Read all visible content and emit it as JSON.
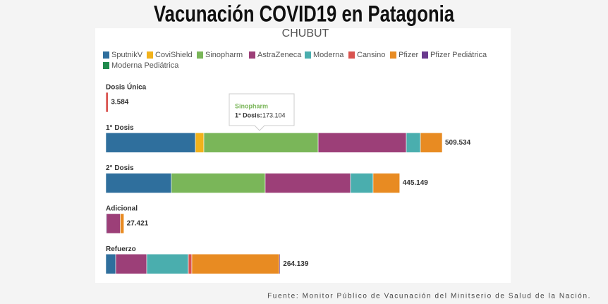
{
  "chart_data": {
    "type": "stacked-barh",
    "title": "Vacunación COVID19 en Patagonia",
    "subtitle": "CHUBUT",
    "source": "Fuente: Monitor Público de Vacunación del Minitserio de Salud de la Nación.",
    "categories": [
      "Dosis Única",
      "1° Dosis",
      "2° Dosis",
      "Adicional",
      "Refuerzo"
    ],
    "series": [
      {
        "name": "SputnikV",
        "color": "#2f6f9d",
        "values": [
          null,
          135700,
          99300,
          1000,
          15000
        ]
      },
      {
        "name": "CoviShield",
        "color": "#f2b21b",
        "values": [
          null,
          12800,
          null,
          null,
          null
        ]
      },
      {
        "name": "Sinopharm",
        "color": "#7ab659",
        "values": [
          null,
          173104,
          142100,
          null,
          null
        ]
      },
      {
        "name": "AstraZeneca",
        "color": "#9c3f78",
        "values": [
          null,
          133500,
          129200,
          21000,
          47000
        ]
      },
      {
        "name": "Moderna",
        "color": "#4aaeae",
        "values": [
          null,
          21400,
          34200,
          null,
          63000
        ]
      },
      {
        "name": "Cansino",
        "color": "#d9534f",
        "values": [
          3584,
          null,
          null,
          null,
          5300
        ]
      },
      {
        "name": "Pfizer",
        "color": "#e88b22",
        "values": [
          null,
          33030,
          40349,
          5421,
          132500
        ]
      },
      {
        "name": "Pfizer Pediátrica",
        "color": "#6a3a8e",
        "values": [
          null,
          null,
          null,
          null,
          1339
        ]
      },
      {
        "name": "Moderna Pediátrica",
        "color": "#1f8a4c",
        "values": [
          null,
          null,
          null,
          null,
          null
        ]
      }
    ],
    "totals": [
      3584,
      509534,
      445149,
      27421,
      264139
    ],
    "total_labels": [
      "3.584",
      "509.534",
      "445.149",
      "27.421",
      "264.139"
    ],
    "tooltip": {
      "series": "Sinopharm",
      "label": "1° Dosis:",
      "value": "173.104"
    }
  }
}
